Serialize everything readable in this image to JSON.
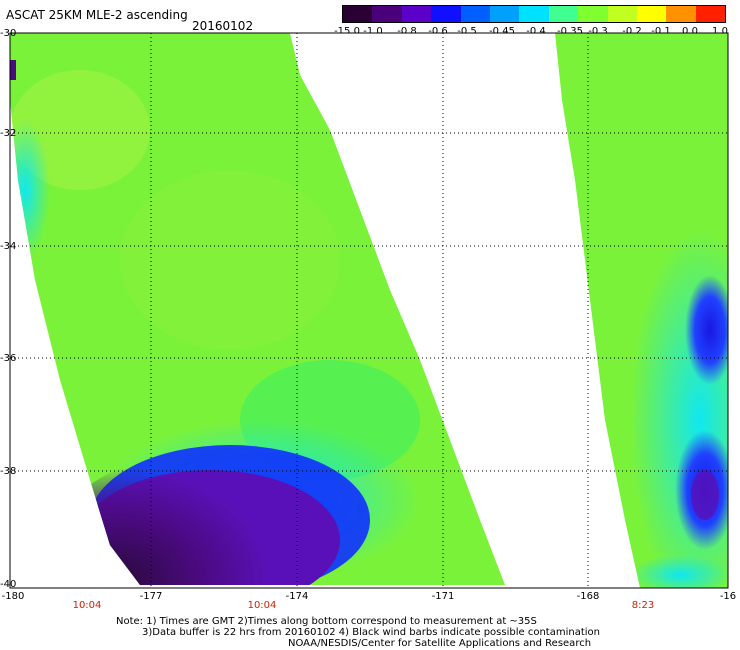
{
  "header": {
    "title": "ASCAT 25KM MLE-2 ascending",
    "date": "20160102"
  },
  "colorbar": {
    "labels": [
      "-15.0",
      "-1.0",
      "-0.8",
      "-0.6",
      "-0.5",
      "-0.45",
      "-0.4",
      "-0.35",
      "-0.3",
      "-0.2",
      "-0.1",
      "0.0",
      "1.0"
    ],
    "colors": [
      "#2a0033",
      "#4a007a",
      "#5a00c8",
      "#1010ff",
      "#0060ff",
      "#00a0ff",
      "#00e0ff",
      "#40ff90",
      "#80ff30",
      "#c0ff20",
      "#ffff00",
      "#ff9000",
      "#ff2000"
    ]
  },
  "axes": {
    "lat_labels": [
      "-30",
      "-32",
      "-34",
      "-36",
      "-38",
      "-40"
    ],
    "lon_labels": [
      "-180",
      "-177",
      "-174",
      "-171",
      "-168",
      "-16"
    ],
    "time_labels": [
      "10:04",
      "10:04",
      "8:23"
    ]
  },
  "footer": {
    "line1": "Note: 1) Times are GMT 2)Times along bottom correspond to measurement at ~35S",
    "line2": "3)Data buffer is 22 hrs from 20160102 4) Black wind barbs indicate possible contamination",
    "line3": "NOAA/NESDIS/Center for Satellite Applications and Research"
  },
  "colors": {
    "swath_green": "#7af23a",
    "swath_bright": "#9af03a",
    "cyan": "#10e8e0",
    "blue": "#1010f0",
    "purple": "#4a0a80",
    "dark": "#2a0a3a"
  }
}
